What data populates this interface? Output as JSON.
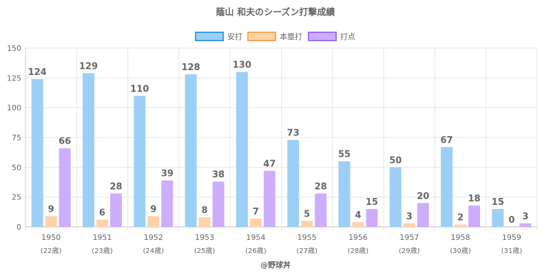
{
  "chart_data": {
    "type": "bar",
    "title": "蔭山 和夫のシーズン打撃成績",
    "categories": [
      "1950",
      "1951",
      "1952",
      "1953",
      "1954",
      "1955",
      "1956",
      "1957",
      "1958",
      "1959"
    ],
    "category_sublabels": [
      "(22歳)",
      "(23歳)",
      "(24歳)",
      "(25歳)",
      "(26歳)",
      "(27歳)",
      "(28歳)",
      "(29歳)",
      "(30歳)",
      "(31歳)"
    ],
    "series": [
      {
        "name": "安打",
        "values": [
          124,
          129,
          110,
          128,
          130,
          73,
          55,
          50,
          67,
          15
        ],
        "fill": "#9ccff5",
        "stroke": "#3b9be3"
      },
      {
        "name": "本塁打",
        "values": [
          9,
          6,
          9,
          8,
          7,
          5,
          4,
          3,
          2,
          0
        ],
        "fill": "#ffd3a8",
        "stroke": "#f5a655"
      },
      {
        "name": "打点",
        "values": [
          66,
          28,
          39,
          38,
          47,
          28,
          15,
          20,
          18,
          3
        ],
        "fill": "#ccaefc",
        "stroke": "#9d6ff2"
      }
    ],
    "ylim": [
      0,
      150
    ],
    "yticks": [
      0,
      25,
      50,
      75,
      100,
      125,
      150
    ],
    "legend_position": "top-center",
    "grid": true
  },
  "credit": "@野球丼"
}
